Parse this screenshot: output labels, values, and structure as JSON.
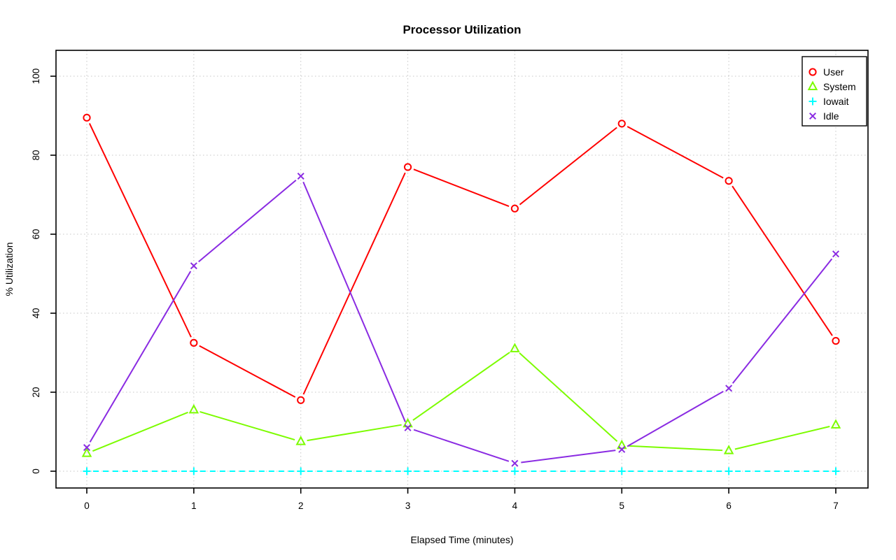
{
  "chart_data": {
    "type": "line",
    "title": "Processor Utilization",
    "xlabel": "Elapsed Time (minutes)",
    "ylabel": "% Utilization",
    "xlim": [
      0,
      7
    ],
    "ylim": [
      0,
      100
    ],
    "x_ticks": [
      0,
      1,
      2,
      3,
      4,
      5,
      6,
      7
    ],
    "y_ticks": [
      0,
      20,
      40,
      60,
      80,
      100
    ],
    "grid": "dotted",
    "legend_position": "top-right",
    "x": [
      0,
      1,
      2,
      3,
      4,
      5,
      6,
      7
    ],
    "series": [
      {
        "name": "User",
        "marker": "circle",
        "color": "#ff0000",
        "line_style": "solid",
        "values": [
          89.5,
          32.5,
          18,
          77,
          66.5,
          88,
          73.5,
          33
        ]
      },
      {
        "name": "System",
        "marker": "triangle",
        "color": "#7cfc00",
        "line_style": "solid",
        "values": [
          4.5,
          15.5,
          7.5,
          12,
          31,
          6.5,
          5.2,
          11.7
        ]
      },
      {
        "name": "Iowait",
        "marker": "plus",
        "color": "#00ffff",
        "line_style": "dashed",
        "values": [
          0,
          0,
          0,
          0,
          0,
          0,
          0,
          0
        ]
      },
      {
        "name": "Idle",
        "marker": "x",
        "color": "#8a2be2",
        "line_style": "solid",
        "values": [
          6,
          52,
          74.7,
          11,
          2,
          5.5,
          21,
          55
        ]
      }
    ]
  }
}
